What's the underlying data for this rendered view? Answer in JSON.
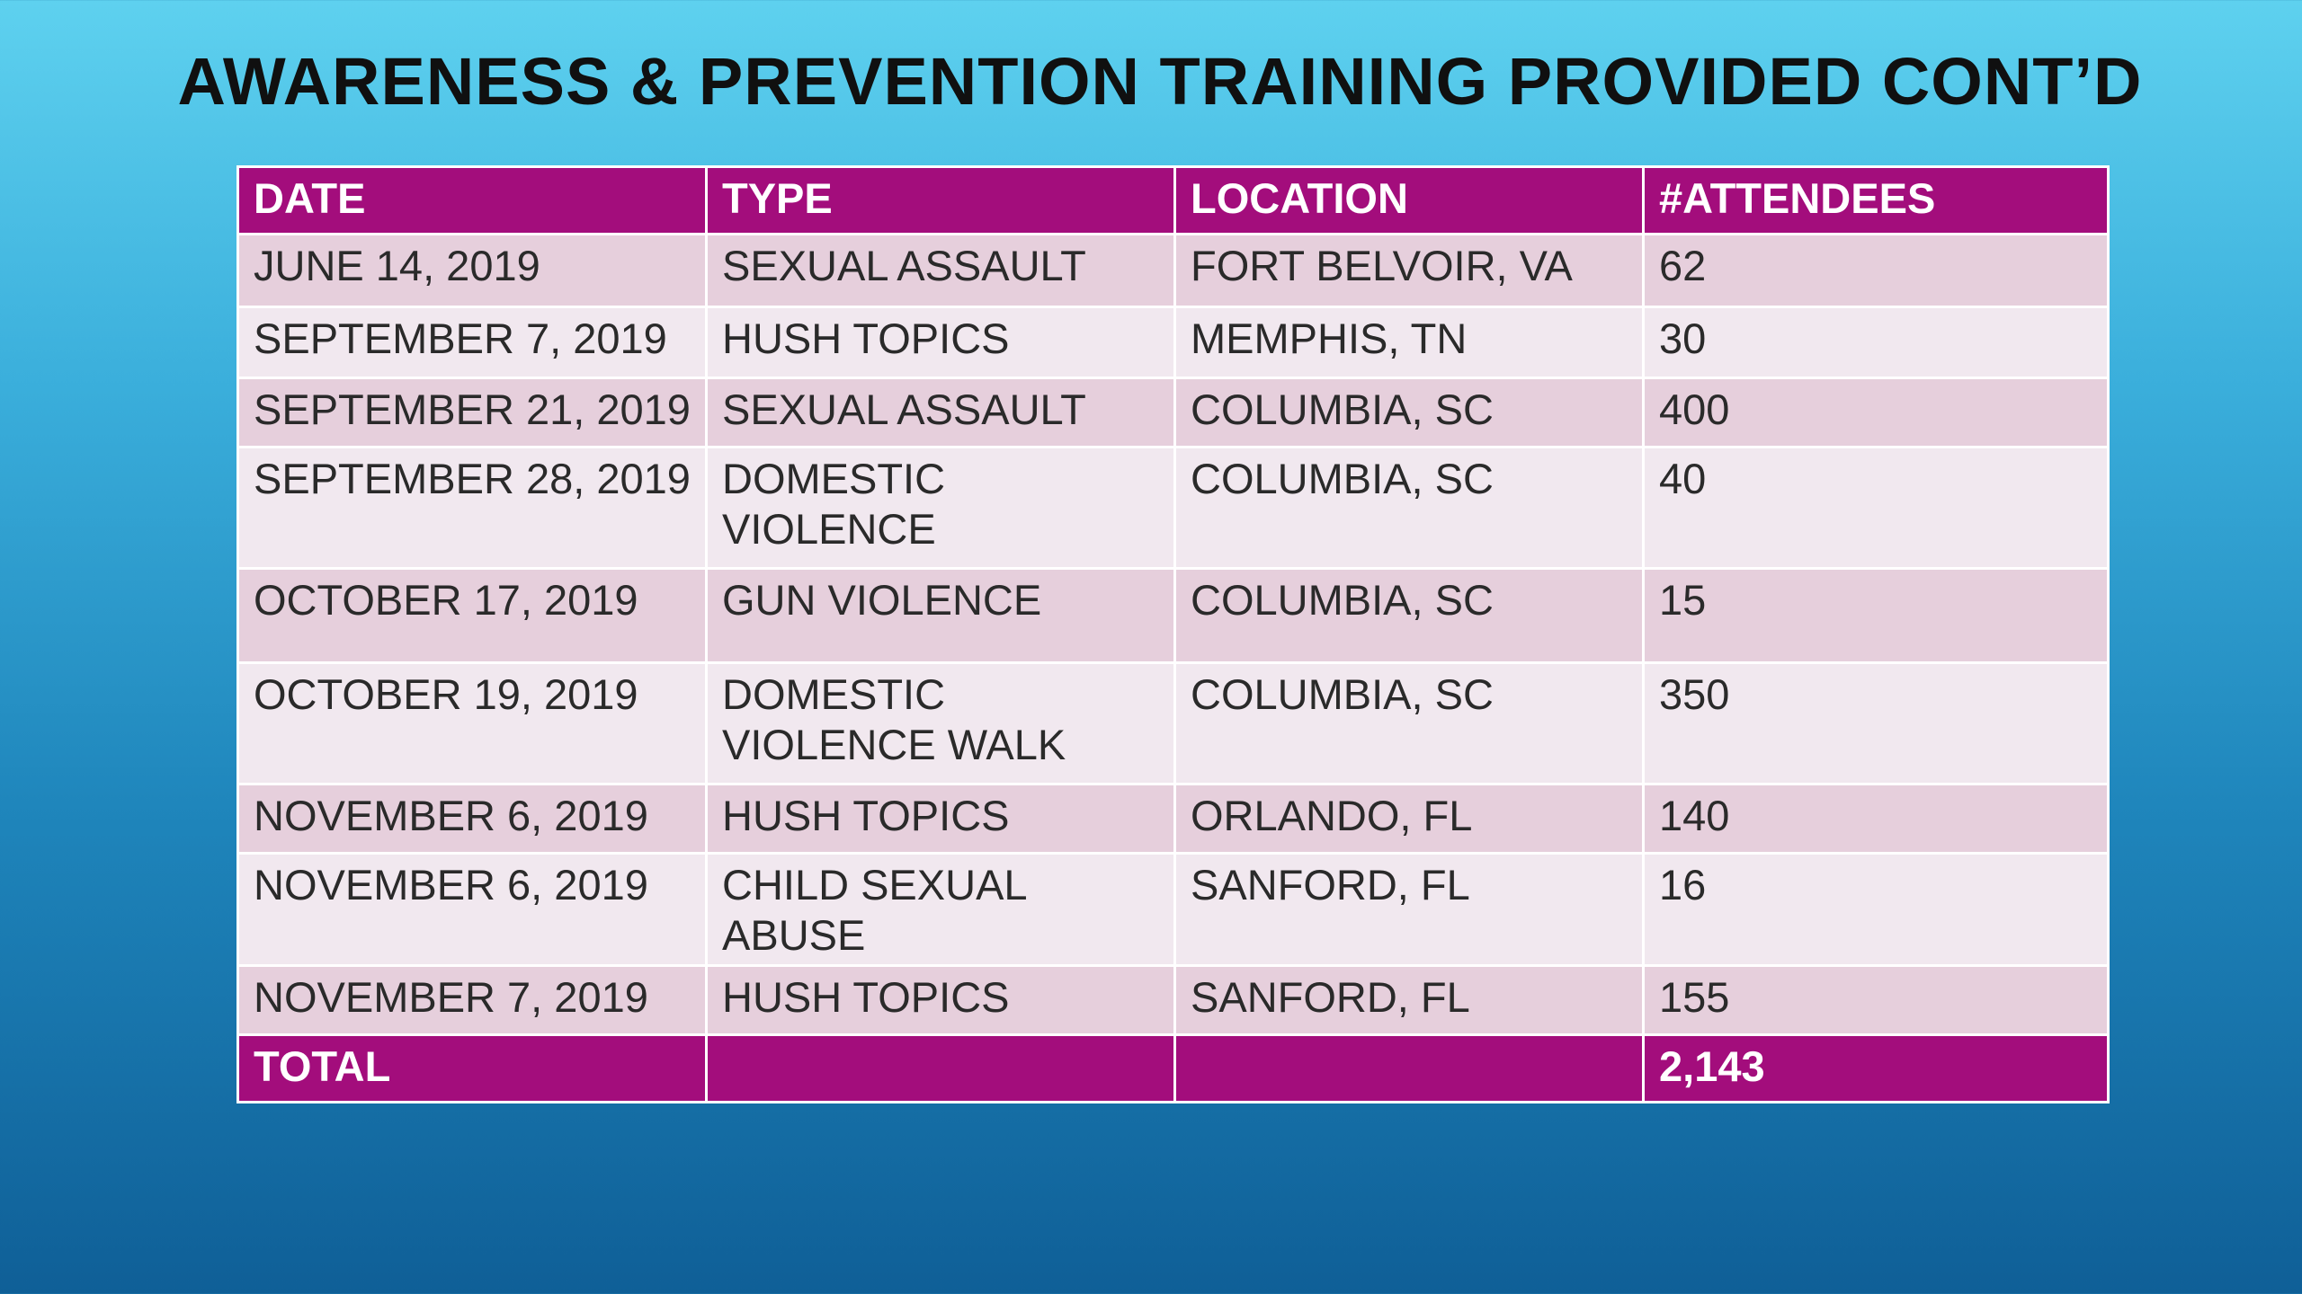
{
  "slide": {
    "title": "AWARENESS & PREVENTION TRAINING PROVIDED CONT’D",
    "colors": {
      "header_bg": "#a30d7c",
      "row_odd": "#e6cfdc",
      "row_even": "#f1e8ef",
      "background_top": "#5ed1ef",
      "background_bottom": "#0f5f97"
    }
  },
  "table": {
    "headers": [
      "DATE",
      "TYPE",
      "LOCATION",
      "#ATTENDEES"
    ],
    "rows": [
      [
        "JUNE 14, 2019",
        "SEXUAL ASSAULT",
        "FORT BELVOIR, VA",
        "62"
      ],
      [
        "SEPTEMBER 7, 2019",
        "HUSH TOPICS",
        "MEMPHIS, TN",
        "30"
      ],
      [
        "SEPTEMBER 21, 2019",
        "SEXUAL ASSAULT",
        "COLUMBIA, SC",
        "400"
      ],
      [
        "SEPTEMBER 28, 2019",
        "DOMESTIC VIOLENCE",
        "COLUMBIA, SC",
        "40"
      ],
      [
        "OCTOBER 17, 2019",
        "GUN VIOLENCE",
        "COLUMBIA, SC",
        "15"
      ],
      [
        "OCTOBER 19, 2019",
        "DOMESTIC VIOLENCE WALK",
        "COLUMBIA, SC",
        "350"
      ],
      [
        "NOVEMBER 6, 2019",
        "HUSH TOPICS",
        "ORLANDO, FL",
        "140"
      ],
      [
        "NOVEMBER 6, 2019",
        "CHILD SEXUAL ABUSE",
        "SANFORD, FL",
        "16"
      ],
      [
        "NOVEMBER 7, 2019",
        "HUSH TOPICS",
        "SANFORD, FL",
        "155"
      ]
    ],
    "total": [
      "TOTAL",
      "",
      "",
      "2,143"
    ]
  }
}
